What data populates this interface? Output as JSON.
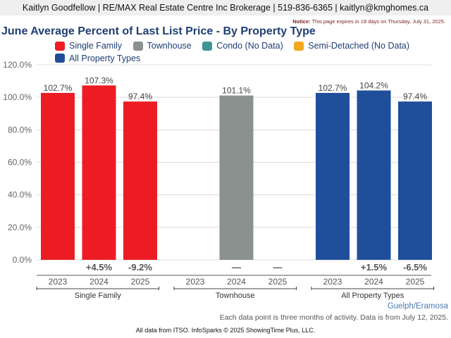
{
  "header": {
    "contact": "Kaitlyn Goodfellow | RE/MAX Real Estate Centre Inc Brokerage | 519-836-6365 | kaitlyn@kmghomes.ca",
    "notice_label": "Notice:",
    "notice_text": "This page expires in 18 days on Thursday, July 31, 2025."
  },
  "chart_data": {
    "type": "bar",
    "title": "June Average Percent of Last List Price - By Property Type",
    "xlabel": "",
    "ylabel": "",
    "ylim": [
      0,
      120
    ],
    "yticks": [
      "0.0%",
      "20.0%",
      "40.0%",
      "60.0%",
      "80.0%",
      "100.0%",
      "120.0%"
    ],
    "ytick_values": [
      0,
      20,
      40,
      60,
      80,
      100,
      120
    ],
    "grid": true,
    "legend_position": "top",
    "legend": [
      {
        "label": "Single Family",
        "color": "#ed1c24"
      },
      {
        "label": "Townhouse",
        "color": "#8a918e"
      },
      {
        "label": "Condo (No Data)",
        "color": "#3f9595"
      },
      {
        "label": "Semi-Detached (No Data)",
        "color": "#f2a81d"
      },
      {
        "label": "All Property Types",
        "color": "#1f4e9b"
      }
    ],
    "groups": [
      {
        "name": "Single Family",
        "color": "#ed1c24",
        "years": [
          "2023",
          "2024",
          "2025"
        ],
        "values": [
          102.7,
          107.3,
          97.4
        ],
        "value_labels": [
          "102.7%",
          "107.3%",
          "97.4%"
        ],
        "changes": [
          "",
          "+4.5%",
          "-9.2%"
        ]
      },
      {
        "name": "Townhouse",
        "color": "#8a918e",
        "years": [
          "2023",
          "2024",
          "2025"
        ],
        "values": [
          null,
          101.1,
          null
        ],
        "value_labels": [
          "",
          "101.1%",
          ""
        ],
        "changes": [
          "",
          "—",
          "—"
        ]
      },
      {
        "name": "All Property Types",
        "color": "#1f4e9b",
        "years": [
          "2023",
          "2024",
          "2025"
        ],
        "values": [
          102.7,
          104.2,
          97.4
        ],
        "value_labels": [
          "102.7%",
          "104.2%",
          "97.4%"
        ],
        "changes": [
          "",
          "+1.5%",
          "-6.5%"
        ]
      }
    ]
  },
  "footer": {
    "geography": "Guelph/Eramosa",
    "note": "Each data point is three months of activity. Data is from July 12, 2025.",
    "source": "All data from ITSO. InfoSparks © 2025 ShowingTime Plus, LLC."
  }
}
